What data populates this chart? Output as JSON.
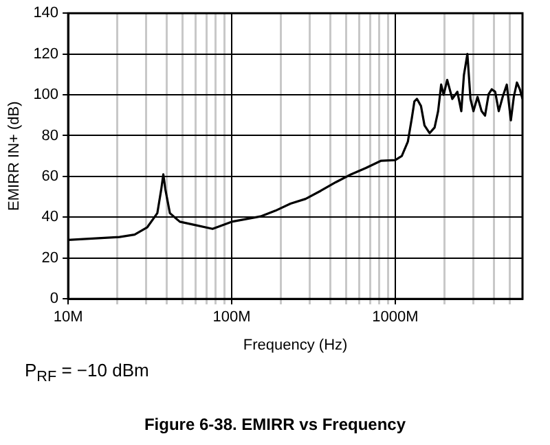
{
  "chart_data": {
    "type": "line",
    "title": "Figure 6-38. EMIRR vs Frequency",
    "xlabel": "Frequency (Hz)",
    "ylabel": "EMIRR IN+ (dB)",
    "annotations": [
      "P$_{RF}$ = −10 dBm"
    ],
    "log": "x",
    "grid": true,
    "legend": false,
    "marker": "none",
    "line_style": "solid",
    "xlim": [
      10,
      6000
    ],
    "ylim": [
      0,
      140
    ],
    "xticks": [
      {
        "value": 10,
        "label": "10M"
      },
      {
        "value": 20,
        "label": null
      },
      {
        "value": 30,
        "label": null
      },
      {
        "value": 40,
        "label": null
      },
      {
        "value": 50,
        "label": null
      },
      {
        "value": 60,
        "label": null
      },
      {
        "value": 70,
        "label": null
      },
      {
        "value": 80,
        "label": null
      },
      {
        "value": 90,
        "label": null
      },
      {
        "value": 100,
        "label": "100M"
      },
      {
        "value": 200,
        "label": null
      },
      {
        "value": 300,
        "label": null
      },
      {
        "value": 400,
        "label": null
      },
      {
        "value": 500,
        "label": null
      },
      {
        "value": 600,
        "label": null
      },
      {
        "value": 700,
        "label": null
      },
      {
        "value": 800,
        "label": null
      },
      {
        "value": 900,
        "label": null
      },
      {
        "value": 1000,
        "label": "1000M"
      },
      {
        "value": 2000,
        "label": null
      },
      {
        "value": 3000,
        "label": null
      },
      {
        "value": 4000,
        "label": null
      },
      {
        "value": 5000,
        "label": null
      }
    ],
    "yticks": [
      0,
      20,
      40,
      60,
      80,
      100,
      120,
      140
    ],
    "series": [
      {
        "color": "#000000",
        "x": [
          10,
          20.6,
          25.5,
          30.4,
          35.1,
          37.1,
          38.2,
          39.3,
          41.9,
          48.2,
          59.6,
          76.4,
          100,
          150,
          185,
          229,
          283,
          351,
          434,
          536,
          663,
          820,
          1000,
          1097,
          1194,
          1264,
          1310,
          1358,
          1437,
          1510,
          1622,
          1741,
          1829,
          1909,
          1977,
          2079,
          2233,
          2398,
          2535,
          2630,
          2762,
          2884,
          3008,
          3186,
          3373,
          3540,
          3724,
          3890,
          4083,
          4294,
          4539,
          4808,
          5093,
          5310,
          5546,
          5781,
          6000
        ],
        "values": [
          28.9,
          30.3,
          31.5,
          35,
          42,
          53.7,
          61,
          53.7,
          42,
          37.8,
          36.2,
          34.3,
          37.8,
          40.4,
          43.2,
          46.7,
          49,
          53,
          57.2,
          61,
          64.2,
          67.7,
          68,
          70,
          77,
          88.7,
          96.8,
          98,
          94.5,
          85,
          81.2,
          84,
          92,
          105,
          100,
          107.3,
          98,
          101.5,
          92,
          109.7,
          120,
          98,
          92,
          99,
          92,
          89.8,
          100.3,
          102.7,
          101.5,
          92,
          99,
          105,
          87.5,
          99,
          106,
          102.7,
          98
        ]
      }
    ]
  }
}
